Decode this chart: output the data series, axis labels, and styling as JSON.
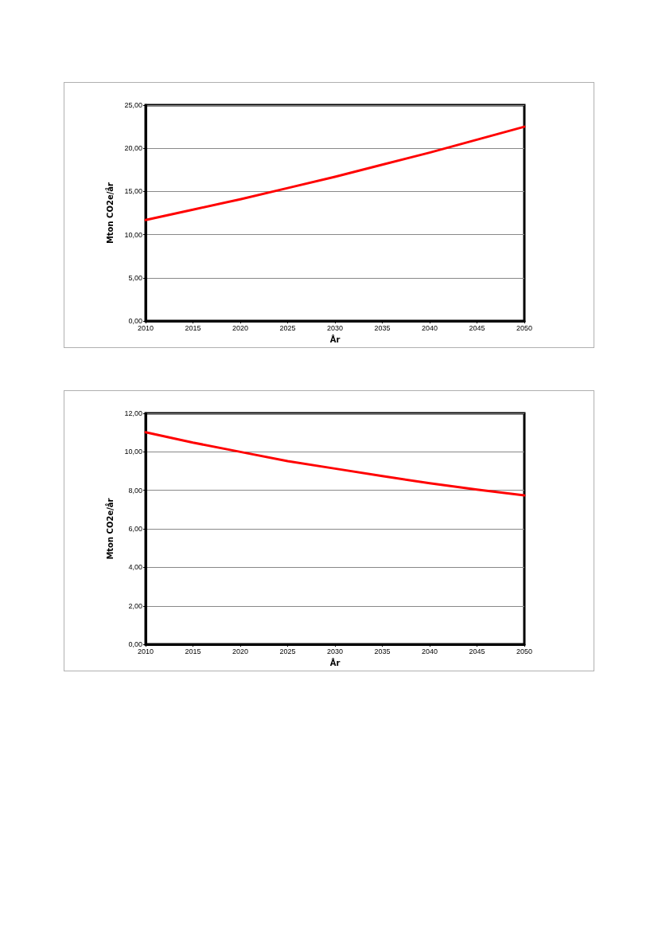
{
  "chart_data": [
    {
      "type": "line",
      "xlabel": "År",
      "ylabel": "Mton CO2e/år",
      "x": [
        2010,
        2015,
        2020,
        2025,
        2030,
        2035,
        2040,
        2045,
        2050
      ],
      "series": [
        {
          "color": "#ff0000",
          "values": [
            11.7,
            12.9,
            14.1,
            15.4,
            16.7,
            18.1,
            19.5,
            21.0,
            22.5
          ]
        }
      ],
      "xlim": [
        2010,
        2050
      ],
      "xticks": [
        2010,
        2015,
        2020,
        2025,
        2030,
        2035,
        2040,
        2045,
        2050
      ],
      "ylim": [
        0,
        25
      ],
      "yticks": [
        {
          "value": 0,
          "label": "0,00"
        },
        {
          "value": 5,
          "label": "5,00"
        },
        {
          "value": 10,
          "label": "10,00"
        },
        {
          "value": 15,
          "label": "15,00"
        },
        {
          "value": 20,
          "label": "20,00"
        },
        {
          "value": 25,
          "label": "25,00"
        }
      ],
      "grid": "y",
      "marker": "none",
      "line_style": "solid"
    },
    {
      "type": "line",
      "xlabel": "År",
      "ylabel": "Mton CO2e/år",
      "x": [
        2010,
        2015,
        2020,
        2025,
        2030,
        2035,
        2040,
        2045,
        2050
      ],
      "series": [
        {
          "color": "#ff0000",
          "values": [
            11.02,
            10.48,
            10.0,
            9.52,
            9.13,
            8.74,
            8.37,
            8.04,
            7.74
          ]
        }
      ],
      "xlim": [
        2010,
        2050
      ],
      "xticks": [
        2010,
        2015,
        2020,
        2025,
        2030,
        2035,
        2040,
        2045,
        2050
      ],
      "ylim": [
        0,
        12
      ],
      "yticks": [
        {
          "value": 0,
          "label": "0,00"
        },
        {
          "value": 2,
          "label": "2,00"
        },
        {
          "value": 4,
          "label": "4,00"
        },
        {
          "value": 6,
          "label": "6,00"
        },
        {
          "value": 8,
          "label": "8,00"
        },
        {
          "value": 10,
          "label": "10,00"
        },
        {
          "value": 12,
          "label": "12,00"
        }
      ],
      "grid": "y",
      "marker": "none",
      "line_style": "solid"
    }
  ]
}
